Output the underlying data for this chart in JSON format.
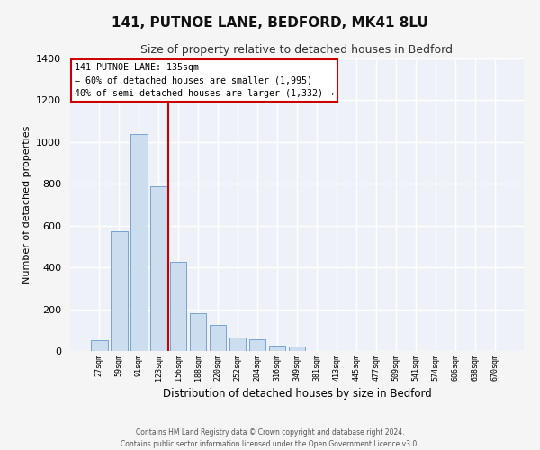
{
  "title": "141, PUTNOE LANE, BEDFORD, MK41 8LU",
  "subtitle": "Size of property relative to detached houses in Bedford",
  "xlabel": "Distribution of detached houses by size in Bedford",
  "ylabel": "Number of detached properties",
  "bar_labels": [
    "27sqm",
    "59sqm",
    "91sqm",
    "123sqm",
    "156sqm",
    "188sqm",
    "220sqm",
    "252sqm",
    "284sqm",
    "316sqm",
    "349sqm",
    "381sqm",
    "413sqm",
    "445sqm",
    "477sqm",
    "509sqm",
    "541sqm",
    "574sqm",
    "606sqm",
    "638sqm",
    "670sqm"
  ],
  "bar_values": [
    50,
    575,
    1040,
    790,
    425,
    180,
    125,
    65,
    55,
    25,
    20,
    0,
    0,
    0,
    0,
    0,
    0,
    0,
    0,
    0,
    0
  ],
  "bar_color": "#ccddf0",
  "bar_edge_color": "#6699cc",
  "ylim": [
    0,
    1400
  ],
  "yticks": [
    0,
    200,
    400,
    600,
    800,
    1000,
    1200,
    1400
  ],
  "vline_x": 3.5,
  "vline_color": "#cc0000",
  "annotation_title": "141 PUTNOE LANE: 135sqm",
  "annotation_line1": "← 60% of detached houses are smaller (1,995)",
  "annotation_line2": "40% of semi-detached houses are larger (1,332) →",
  "annotation_box_color": "#cc0000",
  "bg_color": "#eef2f8",
  "fig_bg_color": "#f5f5f5",
  "footer_line1": "Contains HM Land Registry data © Crown copyright and database right 2024.",
  "footer_line2": "Contains public sector information licensed under the Open Government Licence v3.0."
}
